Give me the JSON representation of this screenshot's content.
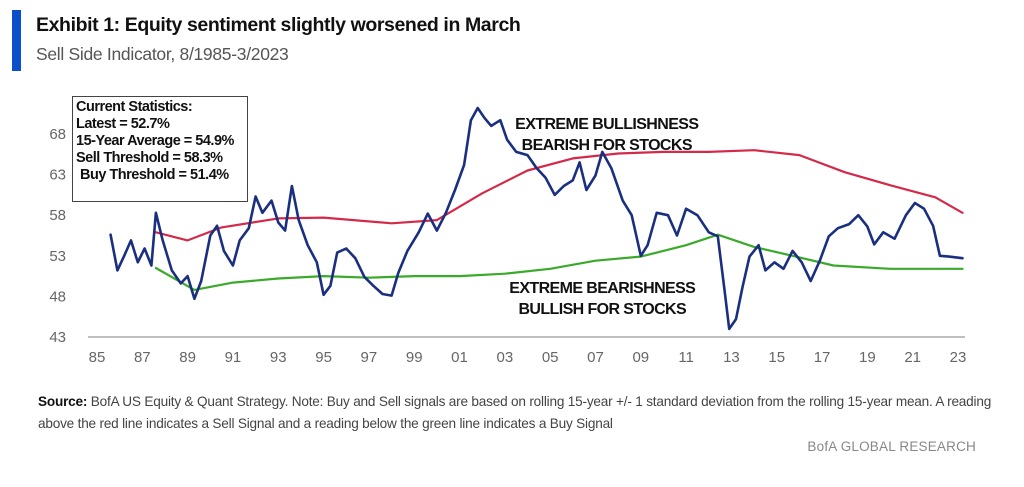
{
  "header": {
    "title": "Exhibit 1: Equity sentiment slightly worsened in March",
    "subtitle": "Sell Side Indicator, 8/1985-3/2023",
    "accent_color": "#0a4fc9"
  },
  "stats_box": {
    "heading": "Current Statistics:",
    "latest": "Latest = 52.7%",
    "average": "15-Year Average = 54.9%",
    "sell_threshold": "Sell Threshold = 58.3%",
    "buy_threshold": "Buy Threshold = 51.4%"
  },
  "footnote": {
    "source_label": "Source:",
    "text": " BofA US Equity & Quant Strategy. Note: Buy and Sell signals are based on rolling 15-year +/- 1 standard deviation from the rolling 15-year mean. A reading above the red line indicates a Sell Signal and a reading below the green line indicates a Buy Signal",
    "brand": "BofA GLOBAL RESEARCH"
  },
  "chart_data": {
    "type": "line",
    "title": "Exhibit 1: Equity sentiment slightly worsened in March",
    "subtitle": "Sell Side Indicator, 8/1985-3/2023",
    "xlabel": "",
    "ylabel": "",
    "xlim": [
      1985,
      2023.3
    ],
    "ylim": [
      43,
      71.5
    ],
    "x_ticks": [
      1985,
      1987,
      1989,
      1991,
      1993,
      1995,
      1997,
      1999,
      2001,
      2003,
      2005,
      2007,
      2009,
      2011,
      2013,
      2015,
      2017,
      2019,
      2021,
      2023
    ],
    "x_tick_labels": [
      "85",
      "87",
      "89",
      "91",
      "93",
      "95",
      "97",
      "99",
      "01",
      "03",
      "05",
      "07",
      "09",
      "11",
      "13",
      "15",
      "17",
      "19",
      "21",
      "23"
    ],
    "y_ticks": [
      43,
      48,
      53,
      58,
      63,
      68
    ],
    "y_tick_labels": [
      "43",
      "48",
      "53",
      "58",
      "63",
      "68"
    ],
    "grid": false,
    "legend": "none",
    "annotations": [
      {
        "text": [
          "EXTREME BULLISHNESS",
          "BEARISH FOR STOCKS"
        ],
        "x": 2007.5,
        "y": 68.6
      },
      {
        "text": [
          "EXTREME BEARISHNESS",
          "BULLISH FOR STOCKS"
        ],
        "x": 2007.3,
        "y": 48.4
      }
    ],
    "series": [
      {
        "name": "Sell Side Indicator",
        "color": "#1a2f80",
        "x": [
          1985.6,
          1985.9,
          1986.2,
          1986.5,
          1986.8,
          1987.1,
          1987.4,
          1987.6,
          1987.9,
          1988.3,
          1988.7,
          1989.0,
          1989.3,
          1989.6,
          1990.0,
          1990.3,
          1990.6,
          1991.0,
          1991.3,
          1991.7,
          1992.0,
          1992.3,
          1992.7,
          1993.0,
          1993.3,
          1993.6,
          1993.9,
          1994.3,
          1994.7,
          1995.0,
          1995.3,
          1995.6,
          1996.0,
          1996.4,
          1996.8,
          1997.2,
          1997.6,
          1998.0,
          1998.3,
          1998.7,
          1999.2,
          1999.6,
          2000.0,
          2000.4,
          2000.8,
          2001.2,
          2001.5,
          2001.8,
          2002.1,
          2002.4,
          2002.8,
          2003.1,
          2003.5,
          2004.0,
          2004.4,
          2004.8,
          2005.2,
          2005.6,
          2006.0,
          2006.3,
          2006.6,
          2007.0,
          2007.3,
          2007.7,
          2008.2,
          2008.6,
          2009.0,
          2009.3,
          2009.7,
          2010.2,
          2010.6,
          2011.0,
          2011.5,
          2012.0,
          2012.4,
          2012.7,
          2012.9,
          2013.2,
          2013.5,
          2013.8,
          2014.2,
          2014.5,
          2014.9,
          2015.3,
          2015.7,
          2016.1,
          2016.5,
          2016.9,
          2017.3,
          2017.7,
          2018.2,
          2018.6,
          2019.0,
          2019.3,
          2019.7,
          2020.2,
          2020.7,
          2021.1,
          2021.5,
          2021.9,
          2022.2,
          2022.6,
          2023.2
        ],
        "values": [
          55.6,
          51.2,
          53.0,
          54.9,
          52.2,
          53.9,
          51.8,
          58.3,
          54.9,
          51.2,
          49.6,
          50.5,
          47.7,
          49.9,
          55.5,
          56.7,
          53.6,
          51.8,
          54.9,
          56.4,
          60.3,
          58.3,
          59.8,
          57.1,
          56.1,
          61.6,
          57.4,
          54.3,
          52.2,
          48.2,
          49.3,
          53.4,
          53.9,
          52.7,
          50.4,
          49.3,
          48.3,
          48.1,
          50.9,
          53.6,
          55.9,
          58.2,
          56.1,
          58.3,
          61.1,
          64.2,
          69.7,
          71.2,
          70.0,
          69.0,
          69.7,
          67.3,
          65.8,
          65.4,
          63.8,
          62.6,
          60.5,
          61.6,
          62.3,
          64.5,
          61.1,
          62.9,
          65.8,
          63.8,
          59.8,
          58.0,
          53.0,
          54.3,
          58.3,
          58.0,
          55.5,
          58.8,
          58.0,
          55.9,
          55.4,
          48.7,
          44.0,
          45.2,
          49.3,
          52.9,
          54.3,
          51.2,
          52.2,
          51.4,
          53.6,
          52.2,
          49.9,
          52.4,
          55.4,
          56.4,
          56.9,
          58.0,
          56.6,
          54.4,
          55.9,
          55.1,
          58.0,
          59.5,
          58.8,
          56.7,
          53.0,
          52.9,
          52.7
        ]
      },
      {
        "name": "Sell Threshold (rolling 15-yr mean + 1 SD)",
        "color": "#d42a4a",
        "x": [
          1987.6,
          1989.0,
          1990.5,
          1993.0,
          1995.0,
          1998.0,
          2000.0,
          2002.0,
          2004.0,
          2006.0,
          2008.0,
          2010.0,
          2012.0,
          2014.0,
          2016.0,
          2018.0,
          2020.0,
          2022.0,
          2023.2
        ],
        "values": [
          55.9,
          54.9,
          56.5,
          57.6,
          57.7,
          57.0,
          57.4,
          60.7,
          63.5,
          65.0,
          65.6,
          65.8,
          65.8,
          66.0,
          65.4,
          63.3,
          61.7,
          60.2,
          58.3
        ]
      },
      {
        "name": "Buy Threshold (rolling 15-yr mean - 1 SD)",
        "color": "#3aaa2a",
        "x": [
          1987.6,
          1989.3,
          1991.0,
          1993.0,
          1995.0,
          1997.0,
          1999.0,
          2001.0,
          2003.0,
          2005.0,
          2007.0,
          2009.0,
          2011.0,
          2012.4,
          2014.0,
          2016.0,
          2017.5,
          2020.0,
          2023.2
        ],
        "values": [
          51.5,
          48.8,
          49.7,
          50.2,
          50.5,
          50.3,
          50.5,
          50.5,
          50.8,
          51.4,
          52.4,
          52.9,
          54.3,
          55.6,
          54.1,
          52.8,
          51.8,
          51.4,
          51.4
        ]
      }
    ]
  }
}
